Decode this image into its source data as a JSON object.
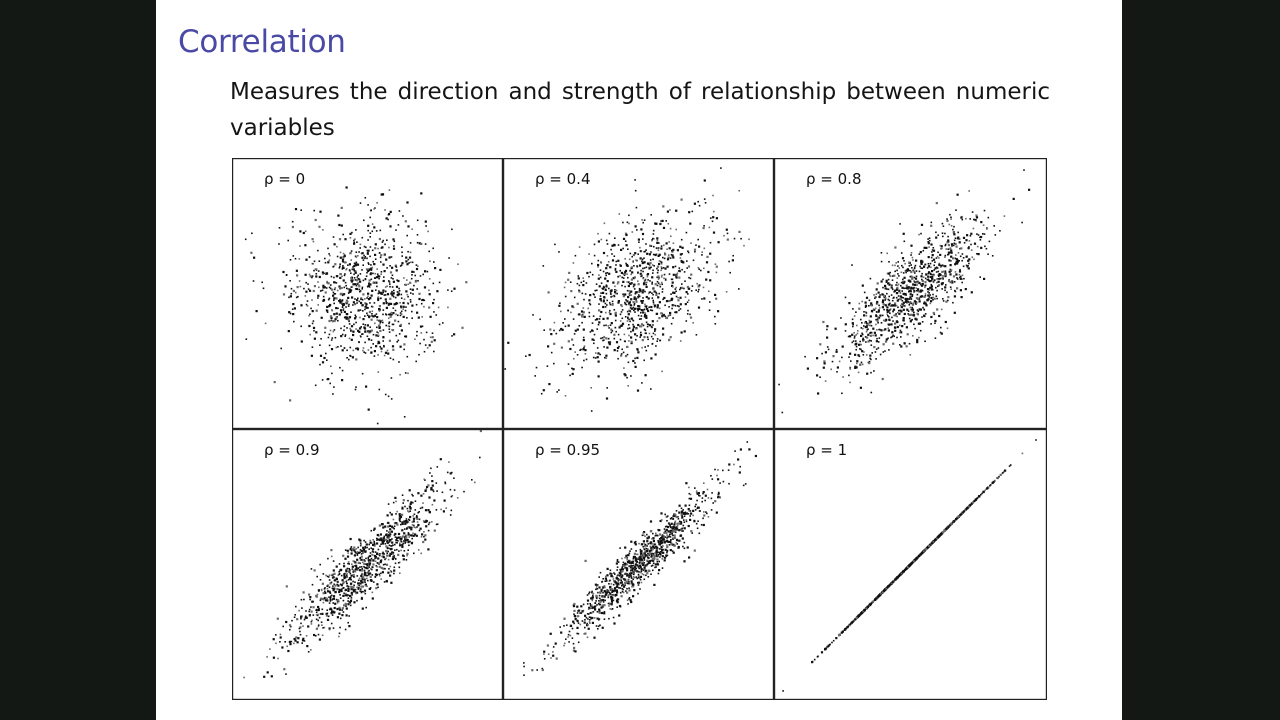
{
  "slide": {
    "title": "Correlation",
    "body": "Measures the direction and strength of relationship between numeric variables"
  },
  "style": {
    "title_color": "#4a4aa6",
    "point_color": "#111111",
    "frame_color": "#222222",
    "slide_background": "#ffffff",
    "outer_background": "#141814"
  },
  "chart_data": [
    {
      "type": "scatter",
      "label": "ρ = 0",
      "rho": 0,
      "points": 1000,
      "xlim": [
        -3.5,
        3.5
      ],
      "ylim": [
        -3.5,
        3.5
      ],
      "grid": false,
      "legend": "none"
    },
    {
      "type": "scatter",
      "label": "ρ = 0.4",
      "rho": 0.4,
      "points": 1000,
      "xlim": [
        -3.5,
        3.5
      ],
      "ylim": [
        -3.5,
        3.5
      ],
      "grid": false,
      "legend": "none"
    },
    {
      "type": "scatter",
      "label": "ρ = 0.8",
      "rho": 0.8,
      "points": 1000,
      "xlim": [
        -3.5,
        3.5
      ],
      "ylim": [
        -3.5,
        3.5
      ],
      "grid": false,
      "legend": "none"
    },
    {
      "type": "scatter",
      "label": "ρ = 0.9",
      "rho": 0.9,
      "points": 1000,
      "xlim": [
        -3.5,
        3.5
      ],
      "ylim": [
        -3.5,
        3.5
      ],
      "grid": false,
      "legend": "none"
    },
    {
      "type": "scatter",
      "label": "ρ = 0.95",
      "rho": 0.95,
      "points": 1000,
      "xlim": [
        -3.5,
        3.5
      ],
      "ylim": [
        -3.5,
        3.5
      ],
      "grid": false,
      "legend": "none"
    },
    {
      "type": "scatter",
      "label": "ρ = 1",
      "rho": 1,
      "points": 1000,
      "xlim": [
        -3.5,
        3.5
      ],
      "ylim": [
        -3.5,
        3.5
      ],
      "grid": false,
      "legend": "none"
    }
  ]
}
